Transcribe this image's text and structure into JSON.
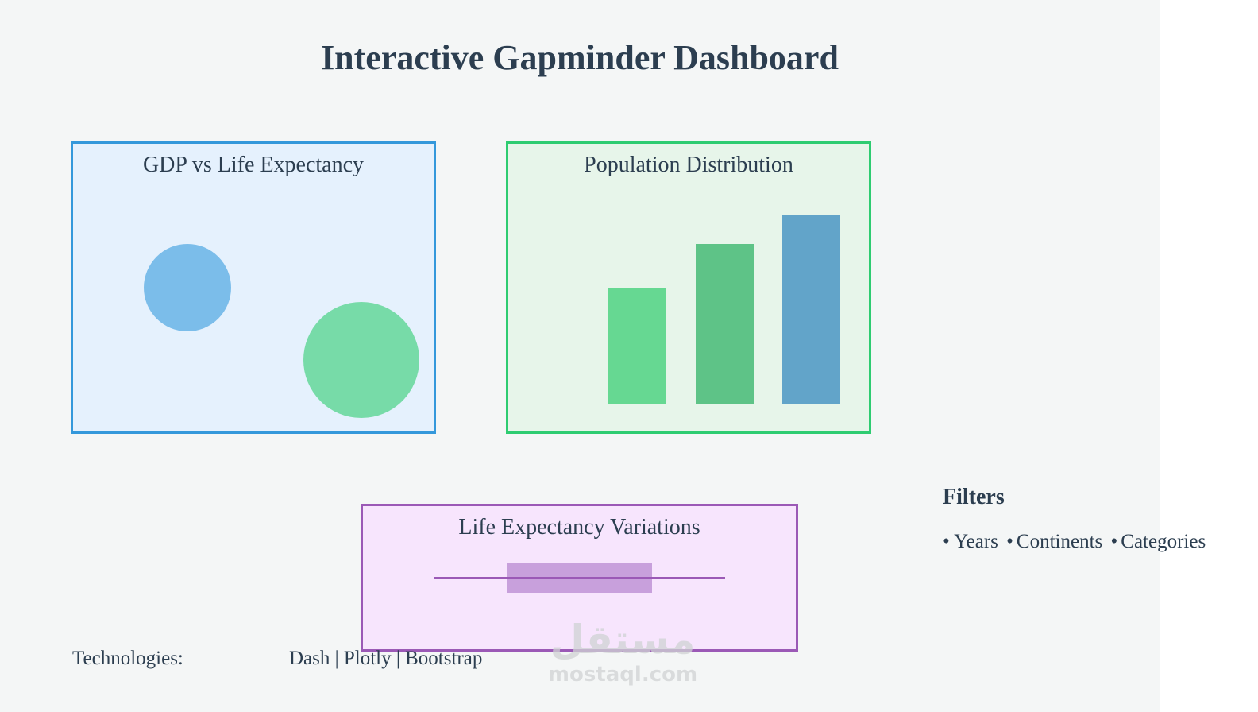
{
  "title": "Interactive Gapminder Dashboard",
  "panels": {
    "gdp": {
      "title": "GDP vs Life Expectancy"
    },
    "population": {
      "title": "Population Distribution"
    },
    "life": {
      "title": "Life Expectancy Variations"
    }
  },
  "filters": {
    "title": "Filters",
    "bullet": "•",
    "items": [
      "Years",
      "Continents",
      "Categories"
    ]
  },
  "technologies": {
    "label": "Technologies:",
    "value": "Dash | Plotly | Bootstrap"
  },
  "watermark": {
    "arabic": "مستقل",
    "latin": "mostaql.com"
  },
  "colors": {
    "blue": "#3498db",
    "green": "#2ecc71",
    "purple": "#9b59b6",
    "text": "#2c3e50"
  },
  "chart_data": [
    {
      "type": "scatter",
      "title": "GDP vs Life Expectancy",
      "points": [
        {
          "size": 1.0,
          "color": "#7bbdea"
        },
        {
          "size": 1.33,
          "color": "#77dba8"
        }
      ]
    },
    {
      "type": "bar",
      "title": "Population Distribution",
      "categories": [
        "",
        "",
        ""
      ],
      "values": [
        4,
        5.5,
        6.5
      ],
      "bar_colors": [
        "#66d892",
        "#5ec387",
        "#62a4c9"
      ]
    },
    {
      "type": "box",
      "title": "Life Expectancy Variations"
    }
  ]
}
